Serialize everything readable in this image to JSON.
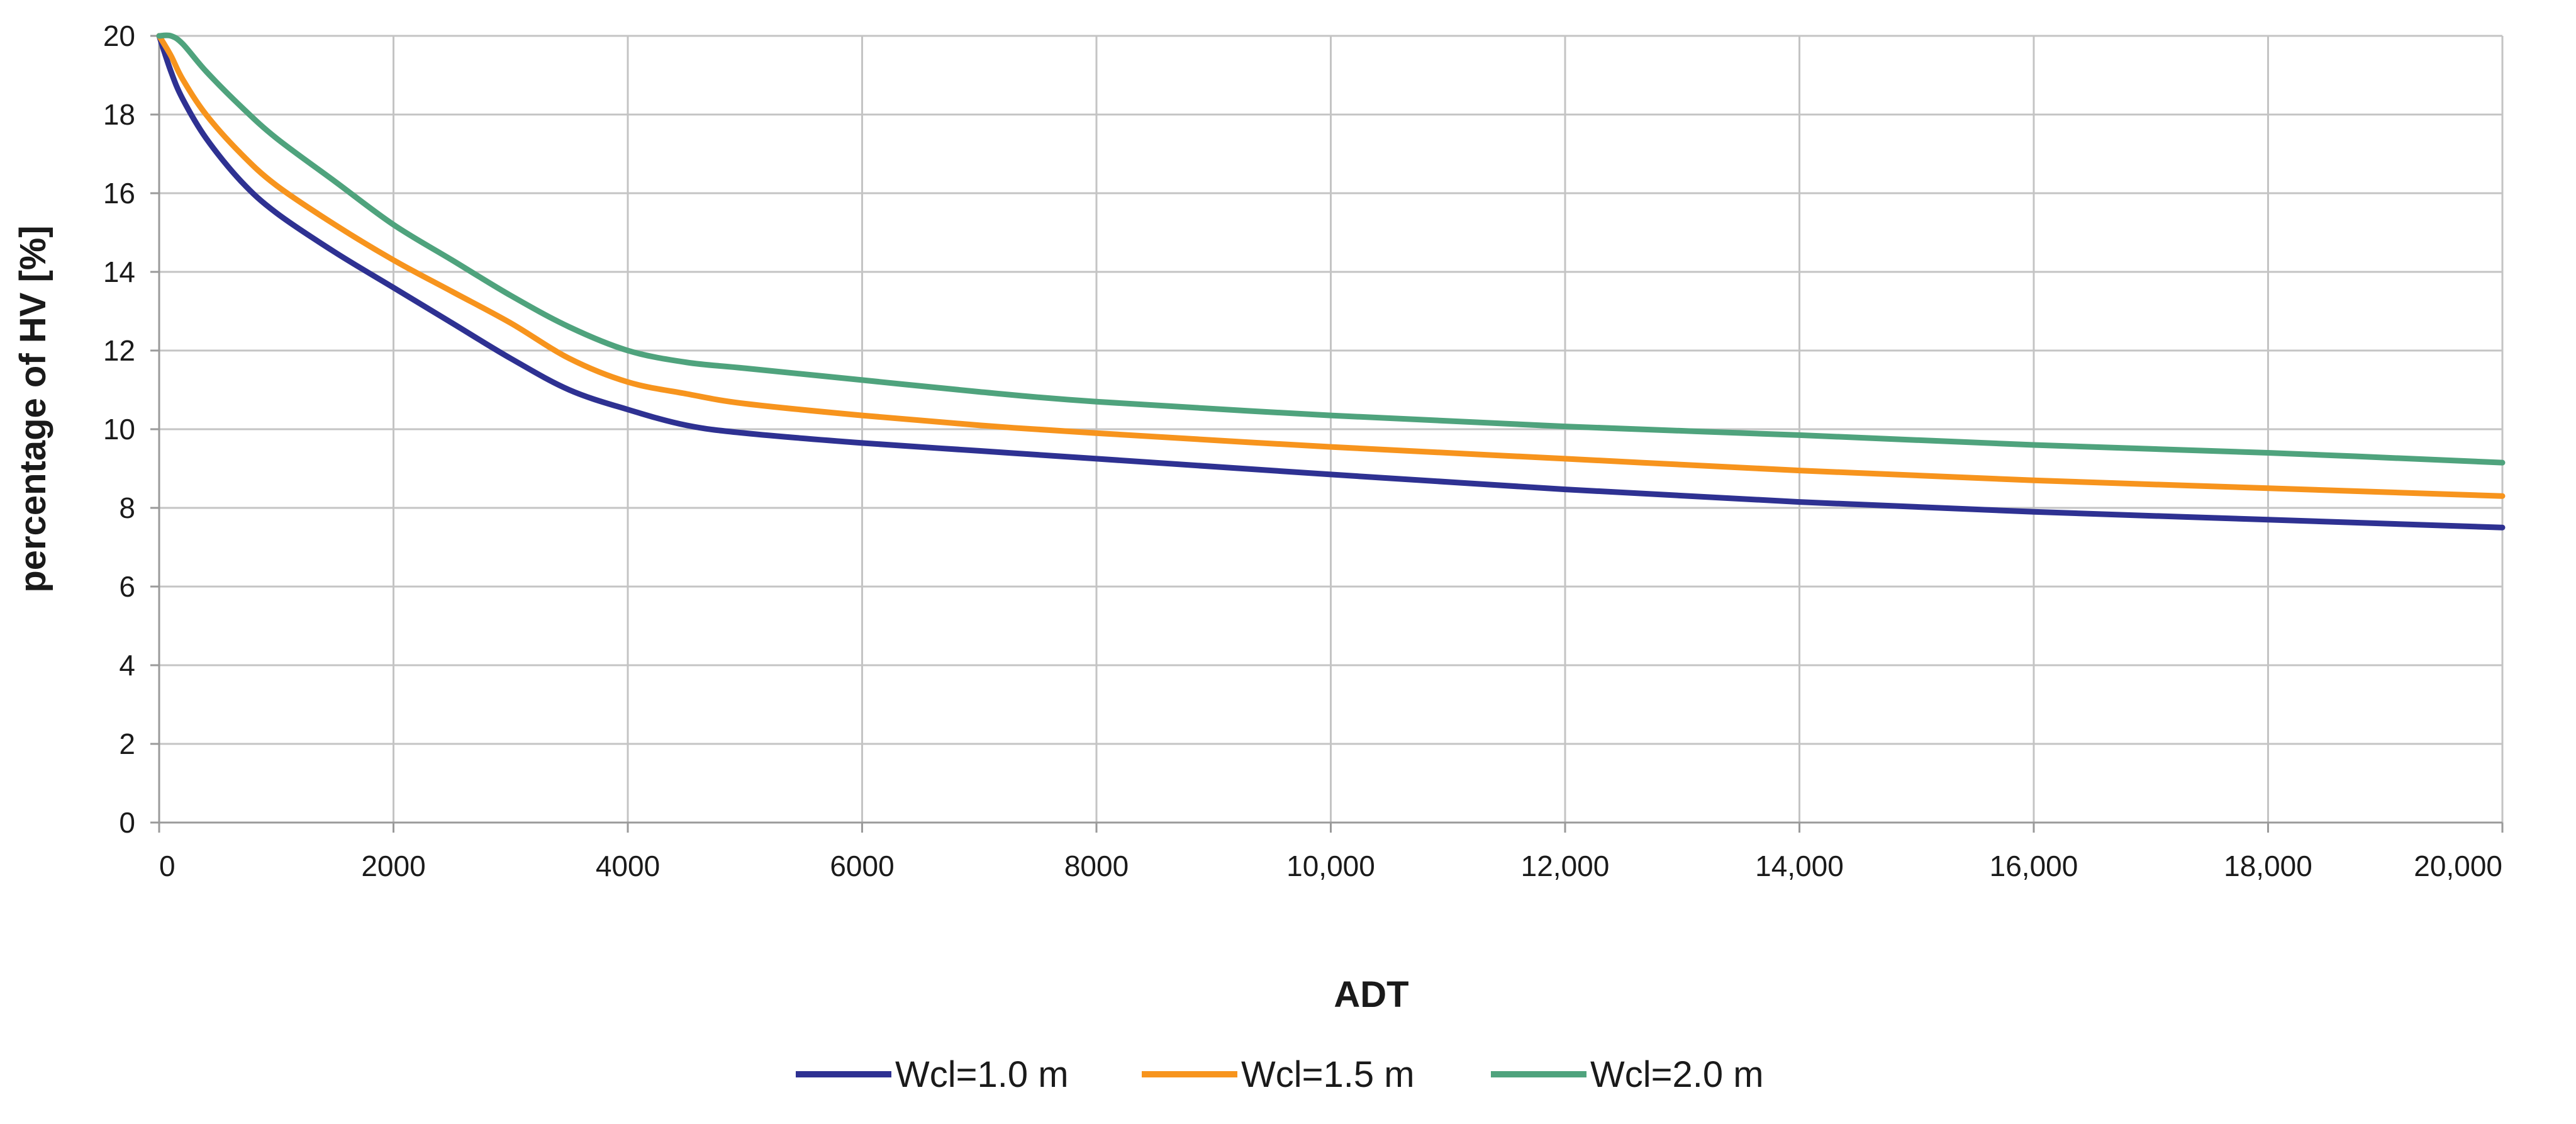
{
  "chart_data": {
    "type": "line",
    "title": "",
    "xlabel": "ADT",
    "ylabel": "percentage of HV [%]",
    "xlim": [
      0,
      20000
    ],
    "ylim": [
      0,
      20
    ],
    "grid": true,
    "legend_position": "bottom-center",
    "x_ticks": [
      {
        "value": 0,
        "label": "0"
      },
      {
        "value": 2000,
        "label": "2000"
      },
      {
        "value": 4000,
        "label": "4000"
      },
      {
        "value": 6000,
        "label": "6000"
      },
      {
        "value": 8000,
        "label": "8000"
      },
      {
        "value": 10000,
        "label": "10,000"
      },
      {
        "value": 12000,
        "label": "12,000"
      },
      {
        "value": 14000,
        "label": "14,000"
      },
      {
        "value": 16000,
        "label": "16,000"
      },
      {
        "value": 18000,
        "label": "18,000"
      },
      {
        "value": 20000,
        "label": "20,000"
      }
    ],
    "y_ticks": [
      {
        "value": 0,
        "label": "0"
      },
      {
        "value": 2,
        "label": "2"
      },
      {
        "value": 4,
        "label": "4"
      },
      {
        "value": 6,
        "label": "6"
      },
      {
        "value": 8,
        "label": "8"
      },
      {
        "value": 10,
        "label": "10"
      },
      {
        "value": 12,
        "label": "12"
      },
      {
        "value": 14,
        "label": "14"
      },
      {
        "value": 16,
        "label": "16"
      },
      {
        "value": 18,
        "label": "18"
      },
      {
        "value": 20,
        "label": "20"
      }
    ],
    "series": [
      {
        "name": "Wcl=1.0 m",
        "color": "#2e3192",
        "points": [
          [
            0,
            20
          ],
          [
            100,
            19.1
          ],
          [
            200,
            18.4
          ],
          [
            400,
            17.4
          ],
          [
            700,
            16.3
          ],
          [
            1000,
            15.5
          ],
          [
            1500,
            14.5
          ],
          [
            2000,
            13.6
          ],
          [
            2500,
            12.7
          ],
          [
            3000,
            11.8
          ],
          [
            3500,
            11.0
          ],
          [
            4000,
            10.5
          ],
          [
            4500,
            10.1
          ],
          [
            5000,
            9.9
          ],
          [
            6000,
            9.65
          ],
          [
            7000,
            9.45
          ],
          [
            8000,
            9.25
          ],
          [
            10000,
            8.85
          ],
          [
            12000,
            8.47
          ],
          [
            14000,
            8.15
          ],
          [
            16000,
            7.9
          ],
          [
            18000,
            7.7
          ],
          [
            20000,
            7.5
          ]
        ]
      },
      {
        "name": "Wcl=1.5 m",
        "color": "#f7941d",
        "points": [
          [
            0,
            20
          ],
          [
            100,
            19.5
          ],
          [
            200,
            18.9
          ],
          [
            400,
            18.0
          ],
          [
            700,
            17.0
          ],
          [
            1000,
            16.2
          ],
          [
            1500,
            15.2
          ],
          [
            2000,
            14.3
          ],
          [
            2500,
            13.5
          ],
          [
            3000,
            12.7
          ],
          [
            3500,
            11.8
          ],
          [
            4000,
            11.2
          ],
          [
            4500,
            10.9
          ],
          [
            5000,
            10.65
          ],
          [
            6000,
            10.35
          ],
          [
            7000,
            10.1
          ],
          [
            8000,
            9.9
          ],
          [
            10000,
            9.55
          ],
          [
            12000,
            9.25
          ],
          [
            14000,
            8.95
          ],
          [
            16000,
            8.7
          ],
          [
            18000,
            8.5
          ],
          [
            20000,
            8.3
          ]
        ]
      },
      {
        "name": "Wcl=2.0 m",
        "color": "#4fa37d",
        "points": [
          [
            0,
            20
          ],
          [
            100,
            20
          ],
          [
            200,
            19.8
          ],
          [
            400,
            19.1
          ],
          [
            700,
            18.2
          ],
          [
            1000,
            17.4
          ],
          [
            1500,
            16.3
          ],
          [
            2000,
            15.2
          ],
          [
            2500,
            14.3
          ],
          [
            3000,
            13.4
          ],
          [
            3500,
            12.6
          ],
          [
            4000,
            12.0
          ],
          [
            4500,
            11.7
          ],
          [
            5000,
            11.55
          ],
          [
            6000,
            11.25
          ],
          [
            7000,
            10.95
          ],
          [
            8000,
            10.7
          ],
          [
            10000,
            10.35
          ],
          [
            12000,
            10.07
          ],
          [
            14000,
            9.85
          ],
          [
            16000,
            9.6
          ],
          [
            18000,
            9.4
          ],
          [
            20000,
            9.15
          ]
        ]
      }
    ]
  }
}
